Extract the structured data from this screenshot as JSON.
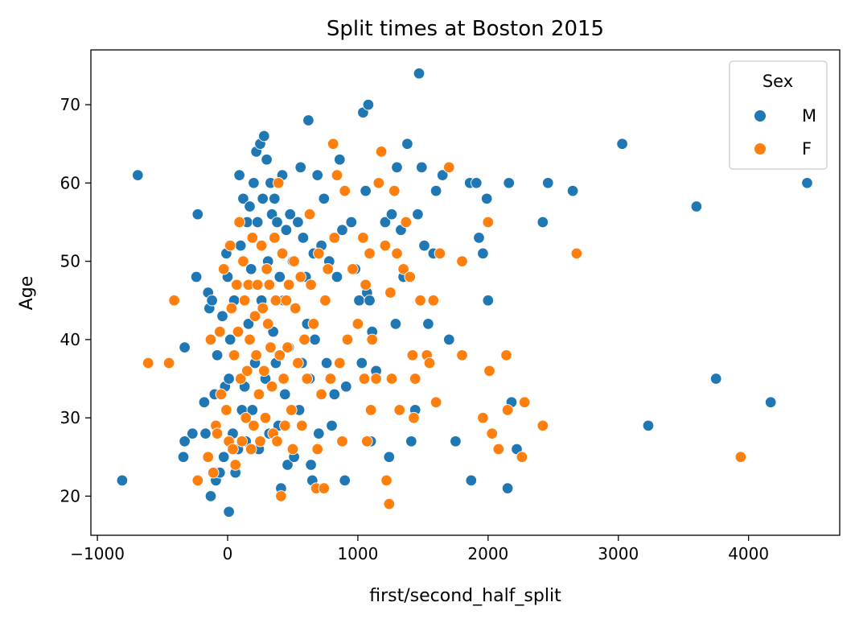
{
  "chart_data": {
    "type": "scatter",
    "title": "Split times at Boston 2015",
    "xlabel": "first/second_half_split",
    "ylabel": "Age",
    "xlim": [
      -1050,
      4700
    ],
    "ylim": [
      15,
      77
    ],
    "xticks": [
      -1000,
      0,
      1000,
      2000,
      3000,
      4000
    ],
    "xtick_labels": [
      "−1000",
      "0",
      "1000",
      "2000",
      "3000",
      "4000"
    ],
    "yticks": [
      20,
      30,
      40,
      50,
      60,
      70
    ],
    "ytick_labels": [
      "20",
      "30",
      "40",
      "50",
      "60",
      "70"
    ],
    "grid": false,
    "legend": {
      "title": "Sex",
      "placement": "top-right"
    },
    "series": [
      {
        "name": "M",
        "color": "#1f77b4",
        "points": [
          [
            -810,
            22
          ],
          [
            -690,
            61
          ],
          [
            -230,
            56
          ],
          [
            -240,
            48
          ],
          [
            -330,
            39
          ],
          [
            -330,
            27
          ],
          [
            -340,
            25
          ],
          [
            -270,
            28
          ],
          [
            -180,
            32
          ],
          [
            -170,
            28
          ],
          [
            -150,
            46
          ],
          [
            -140,
            44
          ],
          [
            -120,
            45
          ],
          [
            -130,
            20
          ],
          [
            -100,
            33
          ],
          [
            -90,
            22
          ],
          [
            -80,
            38
          ],
          [
            -60,
            23
          ],
          [
            -40,
            43
          ],
          [
            -30,
            25
          ],
          [
            -20,
            34
          ],
          [
            -10,
            51
          ],
          [
            10,
            35
          ],
          [
            0,
            48
          ],
          [
            10,
            18
          ],
          [
            20,
            40
          ],
          [
            40,
            28
          ],
          [
            50,
            45
          ],
          [
            60,
            23
          ],
          [
            80,
            26
          ],
          [
            90,
            61
          ],
          [
            100,
            52
          ],
          [
            110,
            31
          ],
          [
            120,
            58
          ],
          [
            130,
            34
          ],
          [
            140,
            27
          ],
          [
            150,
            55
          ],
          [
            160,
            42
          ],
          [
            170,
            57
          ],
          [
            180,
            49
          ],
          [
            190,
            31
          ],
          [
            200,
            60
          ],
          [
            210,
            37
          ],
          [
            220,
            64
          ],
          [
            230,
            55
          ],
          [
            240,
            26
          ],
          [
            250,
            65
          ],
          [
            260,
            45
          ],
          [
            270,
            58
          ],
          [
            280,
            66
          ],
          [
            290,
            35
          ],
          [
            300,
            63
          ],
          [
            310,
            50
          ],
          [
            320,
            28
          ],
          [
            330,
            60
          ],
          [
            340,
            56
          ],
          [
            350,
            41
          ],
          [
            360,
            58
          ],
          [
            370,
            37
          ],
          [
            380,
            55
          ],
          [
            390,
            29
          ],
          [
            400,
            48
          ],
          [
            410,
            21
          ],
          [
            420,
            61
          ],
          [
            430,
            45
          ],
          [
            440,
            33
          ],
          [
            450,
            54
          ],
          [
            460,
            24
          ],
          [
            470,
            39
          ],
          [
            480,
            56
          ],
          [
            500,
            50
          ],
          [
            510,
            25
          ],
          [
            520,
            44
          ],
          [
            540,
            55
          ],
          [
            550,
            31
          ],
          [
            560,
            62
          ],
          [
            570,
            37
          ],
          [
            580,
            53
          ],
          [
            600,
            48
          ],
          [
            610,
            42
          ],
          [
            620,
            68
          ],
          [
            630,
            35
          ],
          [
            640,
            24
          ],
          [
            650,
            22
          ],
          [
            660,
            51
          ],
          [
            670,
            40
          ],
          [
            690,
            61
          ],
          [
            700,
            28
          ],
          [
            720,
            52
          ],
          [
            740,
            58
          ],
          [
            750,
            45
          ],
          [
            760,
            37
          ],
          [
            780,
            50
          ],
          [
            800,
            29
          ],
          [
            820,
            33
          ],
          [
            840,
            48
          ],
          [
            860,
            63
          ],
          [
            880,
            54
          ],
          [
            900,
            22
          ],
          [
            910,
            34
          ],
          [
            950,
            55
          ],
          [
            980,
            49
          ],
          [
            1010,
            45
          ],
          [
            1030,
            37
          ],
          [
            1040,
            69
          ],
          [
            1060,
            59
          ],
          [
            1070,
            46
          ],
          [
            1080,
            70
          ],
          [
            1090,
            45
          ],
          [
            1100,
            27
          ],
          [
            1110,
            41
          ],
          [
            1140,
            36
          ],
          [
            1180,
            64
          ],
          [
            1210,
            55
          ],
          [
            1240,
            25
          ],
          [
            1260,
            56
          ],
          [
            1290,
            42
          ],
          [
            1300,
            62
          ],
          [
            1330,
            54
          ],
          [
            1350,
            48
          ],
          [
            1380,
            65
          ],
          [
            1410,
            27
          ],
          [
            1440,
            31
          ],
          [
            1460,
            56
          ],
          [
            1470,
            74
          ],
          [
            1490,
            62
          ],
          [
            1510,
            52
          ],
          [
            1540,
            42
          ],
          [
            1580,
            51
          ],
          [
            1600,
            59
          ],
          [
            1650,
            61
          ],
          [
            1700,
            40
          ],
          [
            1750,
            27
          ],
          [
            1860,
            60
          ],
          [
            1870,
            22
          ],
          [
            1910,
            60
          ],
          [
            1930,
            53
          ],
          [
            1960,
            51
          ],
          [
            1990,
            58
          ],
          [
            2000,
            45
          ],
          [
            2150,
            21
          ],
          [
            2160,
            60
          ],
          [
            2180,
            32
          ],
          [
            2220,
            26
          ],
          [
            2420,
            55
          ],
          [
            2460,
            60
          ],
          [
            2650,
            59
          ],
          [
            3030,
            65
          ],
          [
            3230,
            29
          ],
          [
            3600,
            57
          ],
          [
            3750,
            35
          ],
          [
            4170,
            32
          ],
          [
            4450,
            60
          ]
        ]
      },
      {
        "name": "F",
        "color": "#ff7f0e",
        "points": [
          [
            -610,
            37
          ],
          [
            -450,
            37
          ],
          [
            -410,
            45
          ],
          [
            -230,
            22
          ],
          [
            -150,
            25
          ],
          [
            -130,
            40
          ],
          [
            -110,
            23
          ],
          [
            -90,
            29
          ],
          [
            -80,
            28
          ],
          [
            -60,
            41
          ],
          [
            -50,
            33
          ],
          [
            -30,
            49
          ],
          [
            -10,
            31
          ],
          [
            10,
            27
          ],
          [
            20,
            52
          ],
          [
            30,
            44
          ],
          [
            40,
            26
          ],
          [
            50,
            38
          ],
          [
            60,
            24
          ],
          [
            70,
            47
          ],
          [
            80,
            41
          ],
          [
            90,
            55
          ],
          [
            100,
            35
          ],
          [
            110,
            27
          ],
          [
            120,
            50
          ],
          [
            130,
            45
          ],
          [
            140,
            30
          ],
          [
            150,
            36
          ],
          [
            160,
            47
          ],
          [
            170,
            40
          ],
          [
            180,
            26
          ],
          [
            190,
            53
          ],
          [
            200,
            29
          ],
          [
            210,
            43
          ],
          [
            220,
            38
          ],
          [
            230,
            47
          ],
          [
            240,
            33
          ],
          [
            250,
            27
          ],
          [
            260,
            52
          ],
          [
            270,
            44
          ],
          [
            280,
            36
          ],
          [
            290,
            30
          ],
          [
            300,
            49
          ],
          [
            310,
            42
          ],
          [
            320,
            47
          ],
          [
            330,
            39
          ],
          [
            340,
            34
          ],
          [
            350,
            28
          ],
          [
            360,
            53
          ],
          [
            370,
            45
          ],
          [
            380,
            27
          ],
          [
            390,
            60
          ],
          [
            400,
            38
          ],
          [
            410,
            20
          ],
          [
            420,
            51
          ],
          [
            430,
            35
          ],
          [
            440,
            29
          ],
          [
            450,
            45
          ],
          [
            460,
            39
          ],
          [
            470,
            47
          ],
          [
            490,
            31
          ],
          [
            500,
            26
          ],
          [
            510,
            50
          ],
          [
            520,
            44
          ],
          [
            540,
            37
          ],
          [
            560,
            48
          ],
          [
            570,
            29
          ],
          [
            590,
            40
          ],
          [
            610,
            35
          ],
          [
            630,
            56
          ],
          [
            640,
            47
          ],
          [
            660,
            42
          ],
          [
            680,
            21
          ],
          [
            690,
            26
          ],
          [
            700,
            51
          ],
          [
            720,
            33
          ],
          [
            740,
            21
          ],
          [
            750,
            45
          ],
          [
            770,
            49
          ],
          [
            790,
            35
          ],
          [
            810,
            65
          ],
          [
            820,
            53
          ],
          [
            840,
            61
          ],
          [
            860,
            37
          ],
          [
            880,
            27
          ],
          [
            900,
            59
          ],
          [
            920,
            40
          ],
          [
            960,
            49
          ],
          [
            1000,
            42
          ],
          [
            1040,
            53
          ],
          [
            1050,
            35
          ],
          [
            1060,
            47
          ],
          [
            1070,
            27
          ],
          [
            1090,
            51
          ],
          [
            1100,
            31
          ],
          [
            1110,
            40
          ],
          [
            1140,
            35
          ],
          [
            1160,
            60
          ],
          [
            1180,
            64
          ],
          [
            1210,
            52
          ],
          [
            1220,
            22
          ],
          [
            1240,
            19
          ],
          [
            1250,
            46
          ],
          [
            1260,
            35
          ],
          [
            1280,
            59
          ],
          [
            1300,
            51
          ],
          [
            1320,
            31
          ],
          [
            1350,
            49
          ],
          [
            1370,
            55
          ],
          [
            1400,
            48
          ],
          [
            1420,
            38
          ],
          [
            1430,
            30
          ],
          [
            1440,
            35
          ],
          [
            1480,
            45
          ],
          [
            1530,
            38
          ],
          [
            1550,
            37
          ],
          [
            1580,
            45
          ],
          [
            1600,
            32
          ],
          [
            1630,
            51
          ],
          [
            1700,
            62
          ],
          [
            1800,
            50
          ],
          [
            1800,
            38
          ],
          [
            1960,
            30
          ],
          [
            2000,
            55
          ],
          [
            2010,
            36
          ],
          [
            2030,
            28
          ],
          [
            2080,
            26
          ],
          [
            2140,
            38
          ],
          [
            2150,
            31
          ],
          [
            2260,
            25
          ],
          [
            2280,
            32
          ],
          [
            2420,
            29
          ],
          [
            2680,
            51
          ],
          [
            3940,
            25
          ]
        ]
      }
    ]
  }
}
